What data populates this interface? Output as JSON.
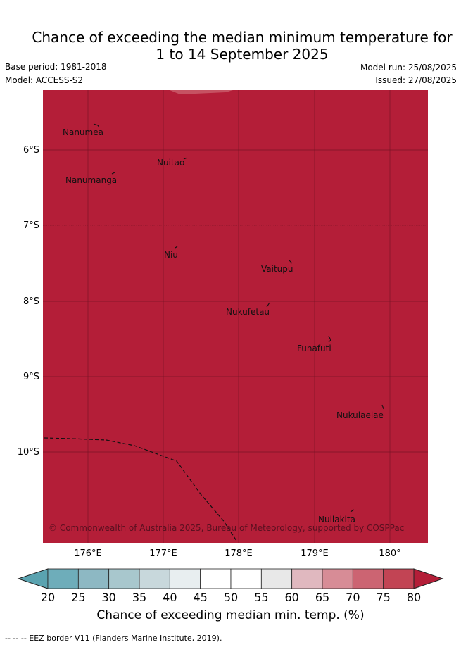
{
  "title_line1": "Chance of exceeding the median minimum temperature for",
  "title_line2": "1 to 14 September 2025",
  "base_period": "Base period: 1981-2018",
  "model": "Model: ACCESS-S2",
  "model_run": "Model run: 25/08/2025",
  "issued": "Issued: 27/08/2025",
  "map_fill_color": "#b41e38",
  "places": [
    "Nanumea",
    "Nuitao",
    "Nanumanga",
    "Niu",
    "Vaitupu",
    "Nukufetau",
    "Funafuti",
    "Nukulaelae",
    "Nuilakita"
  ],
  "copyright": "© Commonwealth of Australia 2025, Bureau of Meteorology, supported by COSPPac",
  "lat_labels": [
    "6°S",
    "7°S",
    "8°S",
    "9°S",
    "10°S"
  ],
  "lon_labels": [
    "176°E",
    "177°E",
    "178°E",
    "179°E",
    "180°"
  ],
  "colorbar": {
    "ticks": [
      "20",
      "25",
      "30",
      "35",
      "40",
      "45",
      "50",
      "55",
      "60",
      "65",
      "70",
      "75",
      "80"
    ],
    "colors": [
      "#5aa3b0",
      "#6eadba",
      "#8db8c3",
      "#a8c7cd",
      "#c8d8dc",
      "#e8eef0",
      "#ffffff",
      "#ffffff",
      "#e8e8e8",
      "#e0b8bf",
      "#d78c96",
      "#cc6472",
      "#c24454",
      "#b41e38"
    ],
    "label": "Chance of exceeding median min. temp. (%)"
  },
  "footnote": "-- -- -- EEZ border V11 (Flanders Marine Institute, 2019)."
}
